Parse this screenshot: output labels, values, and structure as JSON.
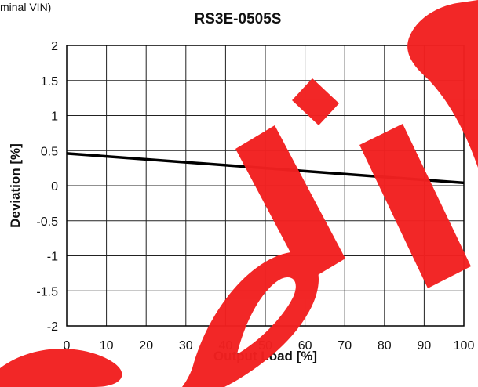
{
  "header_note": "minal VIN)",
  "watermark": {
    "text": "Prelim",
    "color": "#f02020"
  },
  "chart_data": {
    "type": "line",
    "title": "RS3E-0505S",
    "xlabel": "Output Load [%]",
    "ylabel": "Deviation [%]",
    "xlim": [
      0,
      100
    ],
    "ylim": [
      -2,
      2
    ],
    "xticks": [
      0,
      10,
      20,
      30,
      40,
      50,
      60,
      70,
      80,
      90,
      100
    ],
    "yticks": [
      2,
      1.5,
      1,
      0.5,
      0,
      -0.5,
      -1,
      -1.5,
      -2
    ],
    "xtick_labels": [
      "0",
      "10",
      "20",
      "30",
      "40",
      "50",
      "60",
      "70",
      "80",
      "90",
      "100"
    ],
    "ytick_labels": [
      "2",
      "1.5",
      "1",
      "0.5",
      "0",
      "-0.5",
      "-1",
      "-1.5",
      "-2"
    ],
    "grid": true,
    "series": [
      {
        "x": [
          0,
          100
        ],
        "y": [
          0.46,
          0.04
        ],
        "color": "#000000"
      }
    ]
  }
}
